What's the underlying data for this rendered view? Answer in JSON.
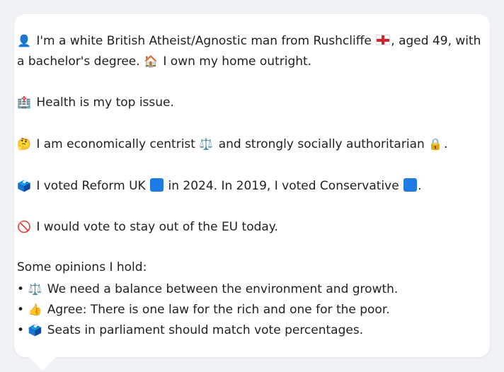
{
  "profile": {
    "intro_line1_part1": "I'm a white British Atheist/Agnostic man from Rushcliffe",
    "intro_line1_part2": ", aged 49, with",
    "intro_line2_part1": "a bachelor's degree.",
    "intro_line2_part2": "I own my home outright.",
    "health_text": "Health is my top issue.",
    "economic_part1": "I am economically centrist",
    "economic_part2": "and strongly socially authoritarian",
    "economic_part3": ".",
    "vote_part1": "I voted Reform UK",
    "vote_part2": "in 2024. In 2019, I voted Conservative",
    "vote_part3": ".",
    "eu_text": "I would vote to stay out of the EU today.",
    "opinions_heading": "Some opinions I hold:",
    "opinions": [
      "We need a balance between the environment and growth.",
      "Agree: There is one law for the rich and one for the poor.",
      "Seats in parliament should match vote percentages."
    ],
    "icons": {
      "person": "👤",
      "house": "🏠",
      "hospital": "🏥",
      "thinking": "🤔",
      "scales": "⚖️",
      "lock": "🔒",
      "ballot": "🗳️",
      "no_entry": "🚫",
      "thumbs_up": "👍",
      "bullet": "•"
    }
  },
  "colors": {
    "reform_uk": "#1d7be3",
    "conservative": "#1d7be3",
    "background": "#f1f2f5",
    "card": "#ffffff"
  }
}
